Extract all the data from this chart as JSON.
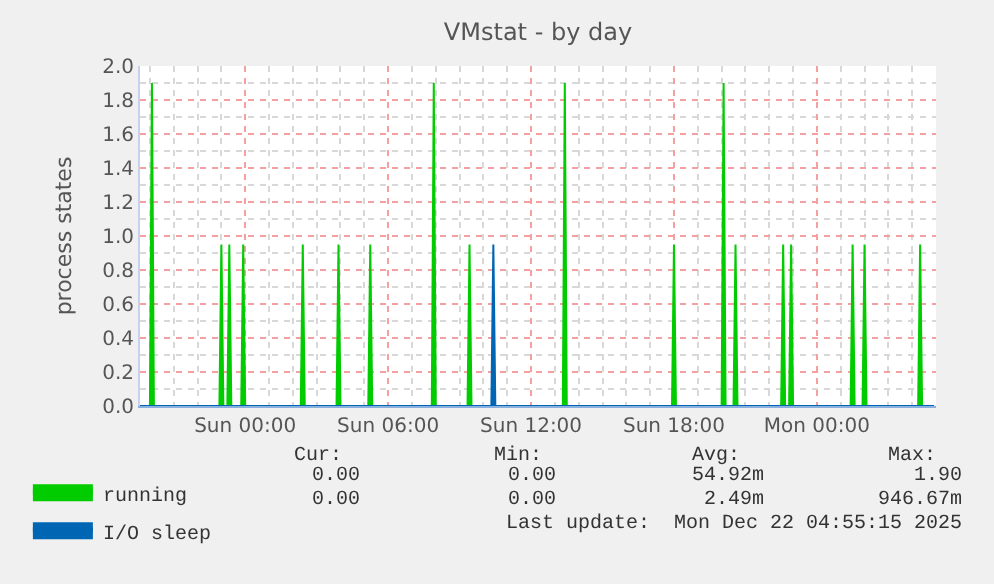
{
  "chart_data": {
    "type": "area",
    "title": "VMstat - by day",
    "ylabel": "process states",
    "xlim": [
      "2025-12-20T19:35",
      "2025-12-22T05:00"
    ],
    "xticks": [
      {
        "value": "2025-12-21T00:00",
        "label": "Sun 00:00"
      },
      {
        "value": "2025-12-21T06:00",
        "label": "Sun 06:00"
      },
      {
        "value": "2025-12-21T12:00",
        "label": "Sun 12:00"
      },
      {
        "value": "2025-12-21T18:00",
        "label": "Sun 18:00"
      },
      {
        "value": "2025-12-22T00:00",
        "label": "Mon 00:00"
      }
    ],
    "ylim": [
      0,
      2.0
    ],
    "yticks": [
      {
        "value": 0,
        "label": "0.0"
      },
      {
        "value": 0.2,
        "label": "0.2"
      },
      {
        "value": 0.4,
        "label": "0.4"
      },
      {
        "value": 0.6,
        "label": "0.6"
      },
      {
        "value": 0.8,
        "label": "0.8"
      },
      {
        "value": 1.0,
        "label": "1.0"
      },
      {
        "value": 1.2,
        "label": "1.2"
      },
      {
        "value": 1.4,
        "label": "1.4"
      },
      {
        "value": 1.6,
        "label": "1.6"
      },
      {
        "value": 1.8,
        "label": "1.8"
      },
      {
        "value": 2.0,
        "label": "2.0"
      }
    ],
    "grid": true,
    "legend": "bottom left",
    "series": [
      {
        "name": "running",
        "color": "#00cc00",
        "x": [
          "2025-12-20T19:35",
          "2025-12-20T20:00",
          "2025-12-20T20:05",
          "2025-12-20T20:10",
          "2025-12-20T22:55",
          "2025-12-20T23:00",
          "2025-12-20T23:05",
          "2025-12-20T23:15",
          "2025-12-20T23:20",
          "2025-12-20T23:25",
          "2025-12-20T23:50",
          "2025-12-20T23:55",
          "2025-12-21T00:00",
          "2025-12-21T02:20",
          "2025-12-21T02:25",
          "2025-12-21T02:30",
          "2025-12-21T03:50",
          "2025-12-21T03:55",
          "2025-12-21T04:00",
          "2025-12-21T05:10",
          "2025-12-21T05:15",
          "2025-12-21T05:20",
          "2025-12-21T07:50",
          "2025-12-21T07:55",
          "2025-12-21T08:00",
          "2025-12-21T09:20",
          "2025-12-21T09:25",
          "2025-12-21T09:30",
          "2025-12-21T13:20",
          "2025-12-21T13:25",
          "2025-12-21T13:30",
          "2025-12-21T17:55",
          "2025-12-21T18:00",
          "2025-12-21T18:05",
          "2025-12-21T20:00",
          "2025-12-21T20:05",
          "2025-12-21T20:10",
          "2025-12-21T20:30",
          "2025-12-21T20:35",
          "2025-12-21T20:40",
          "2025-12-21T22:30",
          "2025-12-21T22:35",
          "2025-12-21T22:40",
          "2025-12-21T22:50",
          "2025-12-21T22:55",
          "2025-12-21T23:00",
          "2025-12-22T01:25",
          "2025-12-22T01:30",
          "2025-12-22T01:35",
          "2025-12-22T01:55",
          "2025-12-22T02:00",
          "2025-12-22T02:05",
          "2025-12-22T04:15",
          "2025-12-22T04:20",
          "2025-12-22T04:25",
          "2025-12-22T04:55"
        ],
        "values": [
          0,
          0,
          1.9,
          0,
          0,
          0.95,
          0,
          0,
          0.95,
          0,
          0,
          0.95,
          0,
          0,
          0.95,
          0,
          0,
          0.95,
          0,
          0,
          0.95,
          0,
          0,
          1.9,
          0,
          0,
          0.95,
          0,
          0,
          1.9,
          0,
          0,
          0.95,
          0,
          0,
          1.9,
          0,
          0,
          0.95,
          0,
          0,
          0.95,
          0,
          0,
          0.95,
          0,
          0,
          0.95,
          0,
          0,
          0.95,
          0,
          0,
          0.95,
          0,
          0
        ]
      },
      {
        "name": "I/O sleep",
        "color": "#0066b3",
        "x": [
          "2025-12-20T19:35",
          "2025-12-21T10:20",
          "2025-12-21T10:25",
          "2025-12-21T10:30",
          "2025-12-22T04:55"
        ],
        "values": [
          0,
          0,
          0.95,
          0,
          0
        ]
      }
    ],
    "annotations": [
      "Cur:",
      "Min:",
      "Avg:",
      "Max:",
      "0.00",
      "0.00",
      "54.92m",
      "1.90",
      "0.00",
      "0.00",
      "2.49m",
      "946.67m",
      "Last update:  Mon Dec 22 04:55:15 2025"
    ]
  }
}
